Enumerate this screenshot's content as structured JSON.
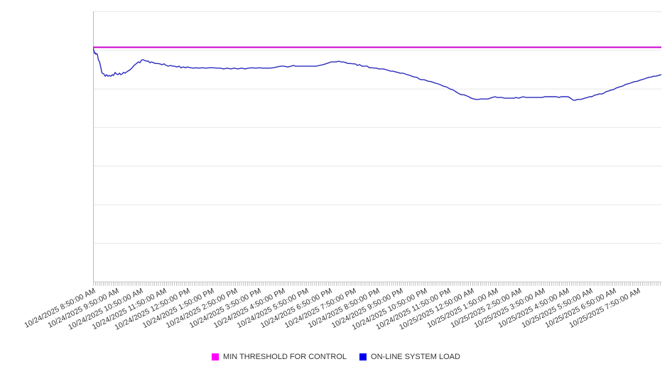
{
  "page": {
    "background": "#ffffff"
  },
  "chart_data": {
    "type": "line",
    "title": "",
    "xlabel": "",
    "ylabel": "",
    "grid": "horizontal",
    "legend_position": "bottom",
    "ylim": [
      0,
      7
    ],
    "y_axis_labels_shown": false,
    "y_unit": "relative load (unlabeled axis, 1 unit = one gridline band)",
    "x_range_minutes": [
      0,
      1440
    ],
    "x_tick_label_interval_minutes": 60,
    "minor_tick_interval_minutes": 5,
    "x_tick_labels": [
      "10/24/2025 8:50:00 AM",
      "10/24/2025 9:50:00 AM",
      "10/24/2025 10:50:00 AM",
      "10/24/2025 11:50:00 AM",
      "10/24/2025 12:50:00 PM",
      "10/24/2025 1:50:00 PM",
      "10/24/2025 2:50:00 PM",
      "10/24/2025 3:50:00 PM",
      "10/24/2025 4:50:00 PM",
      "10/24/2025 5:50:00 PM",
      "10/24/2025 6:50:00 PM",
      "10/24/2025 7:50:00 PM",
      "10/24/2025 8:50:00 PM",
      "10/24/2025 9:50:00 PM",
      "10/24/2025 10:50:00 PM",
      "10/24/2025 11:50:00 PM",
      "10/25/2025 12:50:00 AM",
      "10/25/2025 1:50:00 AM",
      "10/25/2025 2:50:00 AM",
      "10/25/2025 3:50:00 AM",
      "10/25/2025 4:50:00 AM",
      "10/25/2025 5:50:00 AM",
      "10/25/2025 6:50:00 AM",
      "10/25/2025 7:50:00 AM"
    ],
    "legend": [
      {
        "label": "MIN THRESHOLD FOR CONTROL",
        "swatch": "#ff00ff"
      },
      {
        "label": "ON-LINE SYSTEM LOAD",
        "swatch": "#0000ee"
      }
    ],
    "series": [
      {
        "name": "MIN THRESHOLD FOR CONTROL",
        "type": "hline",
        "color": "#cc00cc",
        "value": 6.07
      },
      {
        "name": "ON-LINE SYSTEM LOAD",
        "type": "line",
        "color": "#2b2bbd",
        "points": [
          [
            0,
            6.06
          ],
          [
            2,
            5.99
          ],
          [
            4,
            5.91
          ],
          [
            5,
            5.93
          ],
          [
            7,
            5.89
          ],
          [
            9,
            5.91
          ],
          [
            11,
            5.88
          ],
          [
            13,
            5.77
          ],
          [
            14,
            5.73
          ],
          [
            16,
            5.71
          ],
          [
            18,
            5.62
          ],
          [
            20,
            5.53
          ],
          [
            22,
            5.43
          ],
          [
            23,
            5.4
          ],
          [
            27,
            5.38
          ],
          [
            31,
            5.32
          ],
          [
            34,
            5.36
          ],
          [
            38,
            5.32
          ],
          [
            41,
            5.34
          ],
          [
            45,
            5.32
          ],
          [
            49,
            5.36
          ],
          [
            52,
            5.34
          ],
          [
            56,
            5.42
          ],
          [
            59,
            5.38
          ],
          [
            63,
            5.36
          ],
          [
            67,
            5.4
          ],
          [
            70,
            5.36
          ],
          [
            74,
            5.38
          ],
          [
            77,
            5.42
          ],
          [
            81,
            5.4
          ],
          [
            85,
            5.43
          ],
          [
            88,
            5.45
          ],
          [
            94,
            5.49
          ],
          [
            99,
            5.54
          ],
          [
            104,
            5.6
          ],
          [
            110,
            5.65
          ],
          [
            115,
            5.69
          ],
          [
            119,
            5.67
          ],
          [
            122,
            5.73
          ],
          [
            126,
            5.75
          ],
          [
            130,
            5.73
          ],
          [
            135,
            5.71
          ],
          [
            140,
            5.71
          ],
          [
            144,
            5.67
          ],
          [
            148,
            5.69
          ],
          [
            153,
            5.67
          ],
          [
            158,
            5.65
          ],
          [
            164,
            5.65
          ],
          [
            169,
            5.64
          ],
          [
            175,
            5.62
          ],
          [
            180,
            5.64
          ],
          [
            185,
            5.6
          ],
          [
            191,
            5.58
          ],
          [
            196,
            5.6
          ],
          [
            202,
            5.58
          ],
          [
            207,
            5.58
          ],
          [
            212,
            5.56
          ],
          [
            218,
            5.58
          ],
          [
            223,
            5.54
          ],
          [
            229,
            5.56
          ],
          [
            234,
            5.54
          ],
          [
            239,
            5.56
          ],
          [
            247,
            5.54
          ],
          [
            254,
            5.53
          ],
          [
            261,
            5.54
          ],
          [
            268,
            5.53
          ],
          [
            277,
            5.54
          ],
          [
            286,
            5.53
          ],
          [
            295,
            5.54
          ],
          [
            304,
            5.54
          ],
          [
            313,
            5.53
          ],
          [
            322,
            5.53
          ],
          [
            331,
            5.51
          ],
          [
            340,
            5.53
          ],
          [
            349,
            5.51
          ],
          [
            358,
            5.53
          ],
          [
            367,
            5.51
          ],
          [
            376,
            5.53
          ],
          [
            385,
            5.51
          ],
          [
            394,
            5.53
          ],
          [
            403,
            5.54
          ],
          [
            412,
            5.53
          ],
          [
            421,
            5.54
          ],
          [
            430,
            5.53
          ],
          [
            439,
            5.53
          ],
          [
            448,
            5.53
          ],
          [
            457,
            5.54
          ],
          [
            466,
            5.56
          ],
          [
            475,
            5.58
          ],
          [
            484,
            5.58
          ],
          [
            493,
            5.56
          ],
          [
            502,
            5.58
          ],
          [
            508,
            5.6
          ],
          [
            513,
            5.58
          ],
          [
            520,
            5.58
          ],
          [
            529,
            5.58
          ],
          [
            538,
            5.58
          ],
          [
            547,
            5.58
          ],
          [
            556,
            5.58
          ],
          [
            565,
            5.58
          ],
          [
            574,
            5.6
          ],
          [
            583,
            5.62
          ],
          [
            592,
            5.65
          ],
          [
            598,
            5.67
          ],
          [
            603,
            5.69
          ],
          [
            610,
            5.69
          ],
          [
            616,
            5.69
          ],
          [
            623,
            5.71
          ],
          [
            628,
            5.69
          ],
          [
            634,
            5.69
          ],
          [
            641,
            5.67
          ],
          [
            646,
            5.65
          ],
          [
            652,
            5.65
          ],
          [
            659,
            5.64
          ],
          [
            664,
            5.64
          ],
          [
            670,
            5.6
          ],
          [
            675,
            5.62
          ],
          [
            682,
            5.58
          ],
          [
            688,
            5.58
          ],
          [
            695,
            5.58
          ],
          [
            700,
            5.54
          ],
          [
            707,
            5.54
          ],
          [
            713,
            5.53
          ],
          [
            718,
            5.53
          ],
          [
            724,
            5.51
          ],
          [
            731,
            5.51
          ],
          [
            736,
            5.51
          ],
          [
            742,
            5.49
          ],
          [
            749,
            5.47
          ],
          [
            754,
            5.45
          ],
          [
            760,
            5.45
          ],
          [
            767,
            5.43
          ],
          [
            772,
            5.42
          ],
          [
            778,
            5.4
          ],
          [
            785,
            5.4
          ],
          [
            790,
            5.38
          ],
          [
            796,
            5.36
          ],
          [
            803,
            5.34
          ],
          [
            808,
            5.32
          ],
          [
            814,
            5.3
          ],
          [
            821,
            5.29
          ],
          [
            826,
            5.25
          ],
          [
            832,
            5.23
          ],
          [
            839,
            5.23
          ],
          [
            844,
            5.21
          ],
          [
            850,
            5.19
          ],
          [
            857,
            5.18
          ],
          [
            862,
            5.16
          ],
          [
            868,
            5.14
          ],
          [
            875,
            5.12
          ],
          [
            880,
            5.1
          ],
          [
            886,
            5.07
          ],
          [
            893,
            5.05
          ],
          [
            898,
            5.03
          ],
          [
            904,
            4.99
          ],
          [
            911,
            4.97
          ],
          [
            916,
            4.94
          ],
          [
            922,
            4.9
          ],
          [
            929,
            4.86
          ],
          [
            934,
            4.84
          ],
          [
            940,
            4.84
          ],
          [
            947,
            4.81
          ],
          [
            952,
            4.79
          ],
          [
            958,
            4.75
          ],
          [
            965,
            4.73
          ],
          [
            970,
            4.72
          ],
          [
            976,
            4.72
          ],
          [
            983,
            4.73
          ],
          [
            988,
            4.73
          ],
          [
            994,
            4.73
          ],
          [
            1001,
            4.73
          ],
          [
            1006,
            4.75
          ],
          [
            1012,
            4.77
          ],
          [
            1019,
            4.79
          ],
          [
            1024,
            4.77
          ],
          [
            1030,
            4.77
          ],
          [
            1037,
            4.77
          ],
          [
            1042,
            4.75
          ],
          [
            1048,
            4.75
          ],
          [
            1055,
            4.75
          ],
          [
            1060,
            4.75
          ],
          [
            1066,
            4.75
          ],
          [
            1073,
            4.77
          ],
          [
            1078,
            4.75
          ],
          [
            1084,
            4.77
          ],
          [
            1091,
            4.79
          ],
          [
            1096,
            4.77
          ],
          [
            1102,
            4.77
          ],
          [
            1109,
            4.77
          ],
          [
            1114,
            4.77
          ],
          [
            1120,
            4.77
          ],
          [
            1127,
            4.77
          ],
          [
            1132,
            4.77
          ],
          [
            1138,
            4.77
          ],
          [
            1145,
            4.79
          ],
          [
            1150,
            4.79
          ],
          [
            1156,
            4.79
          ],
          [
            1163,
            4.79
          ],
          [
            1168,
            4.79
          ],
          [
            1174,
            4.79
          ],
          [
            1181,
            4.77
          ],
          [
            1186,
            4.79
          ],
          [
            1192,
            4.79
          ],
          [
            1199,
            4.79
          ],
          [
            1204,
            4.79
          ],
          [
            1210,
            4.75
          ],
          [
            1217,
            4.7
          ],
          [
            1222,
            4.7
          ],
          [
            1228,
            4.72
          ],
          [
            1235,
            4.72
          ],
          [
            1240,
            4.73
          ],
          [
            1246,
            4.75
          ],
          [
            1253,
            4.77
          ],
          [
            1258,
            4.79
          ],
          [
            1264,
            4.79
          ],
          [
            1271,
            4.83
          ],
          [
            1276,
            4.84
          ],
          [
            1282,
            4.86
          ],
          [
            1289,
            4.86
          ],
          [
            1294,
            4.88
          ],
          [
            1300,
            4.92
          ],
          [
            1307,
            4.94
          ],
          [
            1312,
            4.96
          ],
          [
            1318,
            4.97
          ],
          [
            1325,
            5.01
          ],
          [
            1330,
            5.03
          ],
          [
            1336,
            5.05
          ],
          [
            1343,
            5.07
          ],
          [
            1348,
            5.1
          ],
          [
            1354,
            5.12
          ],
          [
            1361,
            5.14
          ],
          [
            1366,
            5.16
          ],
          [
            1372,
            5.18
          ],
          [
            1379,
            5.19
          ],
          [
            1384,
            5.21
          ],
          [
            1390,
            5.23
          ],
          [
            1397,
            5.25
          ],
          [
            1402,
            5.27
          ],
          [
            1408,
            5.29
          ],
          [
            1415,
            5.3
          ],
          [
            1420,
            5.32
          ],
          [
            1426,
            5.32
          ],
          [
            1433,
            5.34
          ],
          [
            1440,
            5.36
          ]
        ]
      }
    ],
    "colors": {
      "gridline": "#e7e7e7",
      "axis": "#c9c9c9",
      "left_axis": "#bbbbbb",
      "tick": "#c4c4c4",
      "label_text": "#333333"
    }
  }
}
